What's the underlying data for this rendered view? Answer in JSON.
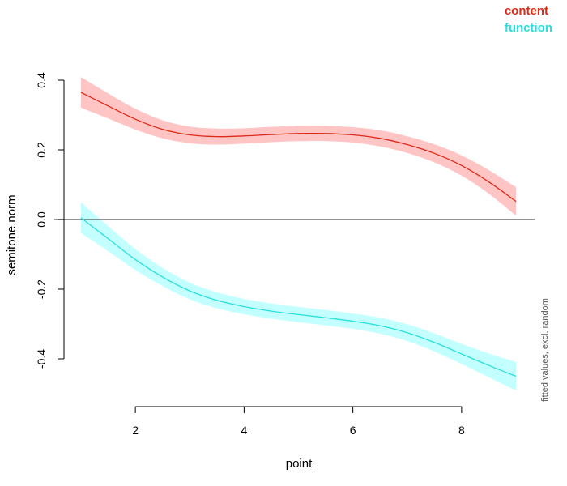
{
  "chart_data": {
    "type": "line",
    "title": "",
    "xlabel": "point",
    "ylabel": "semitone.norm",
    "side_note": "fitted values, excl. random",
    "xlim": [
      1,
      9
    ],
    "ylim": [
      -0.4,
      0.4
    ],
    "x_ticks": [
      2,
      4,
      6,
      8
    ],
    "y_ticks": [
      -0.4,
      -0.2,
      0.0,
      0.2,
      0.4
    ],
    "y_tick_labels": [
      "-0.4",
      "-0.2",
      "0.0",
      "0.2",
      "0.4"
    ],
    "reference_line_y": 0,
    "grid": false,
    "legend_position": "top-right",
    "x": [
      1,
      1.5,
      2,
      2.5,
      3,
      3.5,
      4,
      4.5,
      5,
      5.5,
      6,
      6.5,
      7,
      7.5,
      8,
      8.5,
      9
    ],
    "series": [
      {
        "name": "content",
        "color": "#dd2a1a",
        "band_color": "#ffc4c4",
        "values": [
          0.365,
          0.326,
          0.288,
          0.259,
          0.243,
          0.238,
          0.24,
          0.244,
          0.247,
          0.247,
          0.243,
          0.233,
          0.215,
          0.19,
          0.155,
          0.108,
          0.052
        ],
        "ci_halfwidth": [
          0.044,
          0.036,
          0.03,
          0.026,
          0.024,
          0.023,
          0.022,
          0.022,
          0.022,
          0.022,
          0.022,
          0.023,
          0.024,
          0.026,
          0.029,
          0.034,
          0.041
        ]
      },
      {
        "name": "function",
        "color": "#29dede",
        "band_color": "#c4ffff",
        "values": [
          0.005,
          -0.055,
          -0.115,
          -0.165,
          -0.205,
          -0.232,
          -0.25,
          -0.263,
          -0.273,
          -0.282,
          -0.292,
          -0.305,
          -0.325,
          -0.353,
          -0.386,
          -0.419,
          -0.45
        ],
        "ci_halfwidth": [
          0.044,
          0.036,
          0.03,
          0.026,
          0.024,
          0.023,
          0.022,
          0.022,
          0.022,
          0.022,
          0.022,
          0.023,
          0.024,
          0.026,
          0.029,
          0.034,
          0.041
        ]
      }
    ]
  }
}
